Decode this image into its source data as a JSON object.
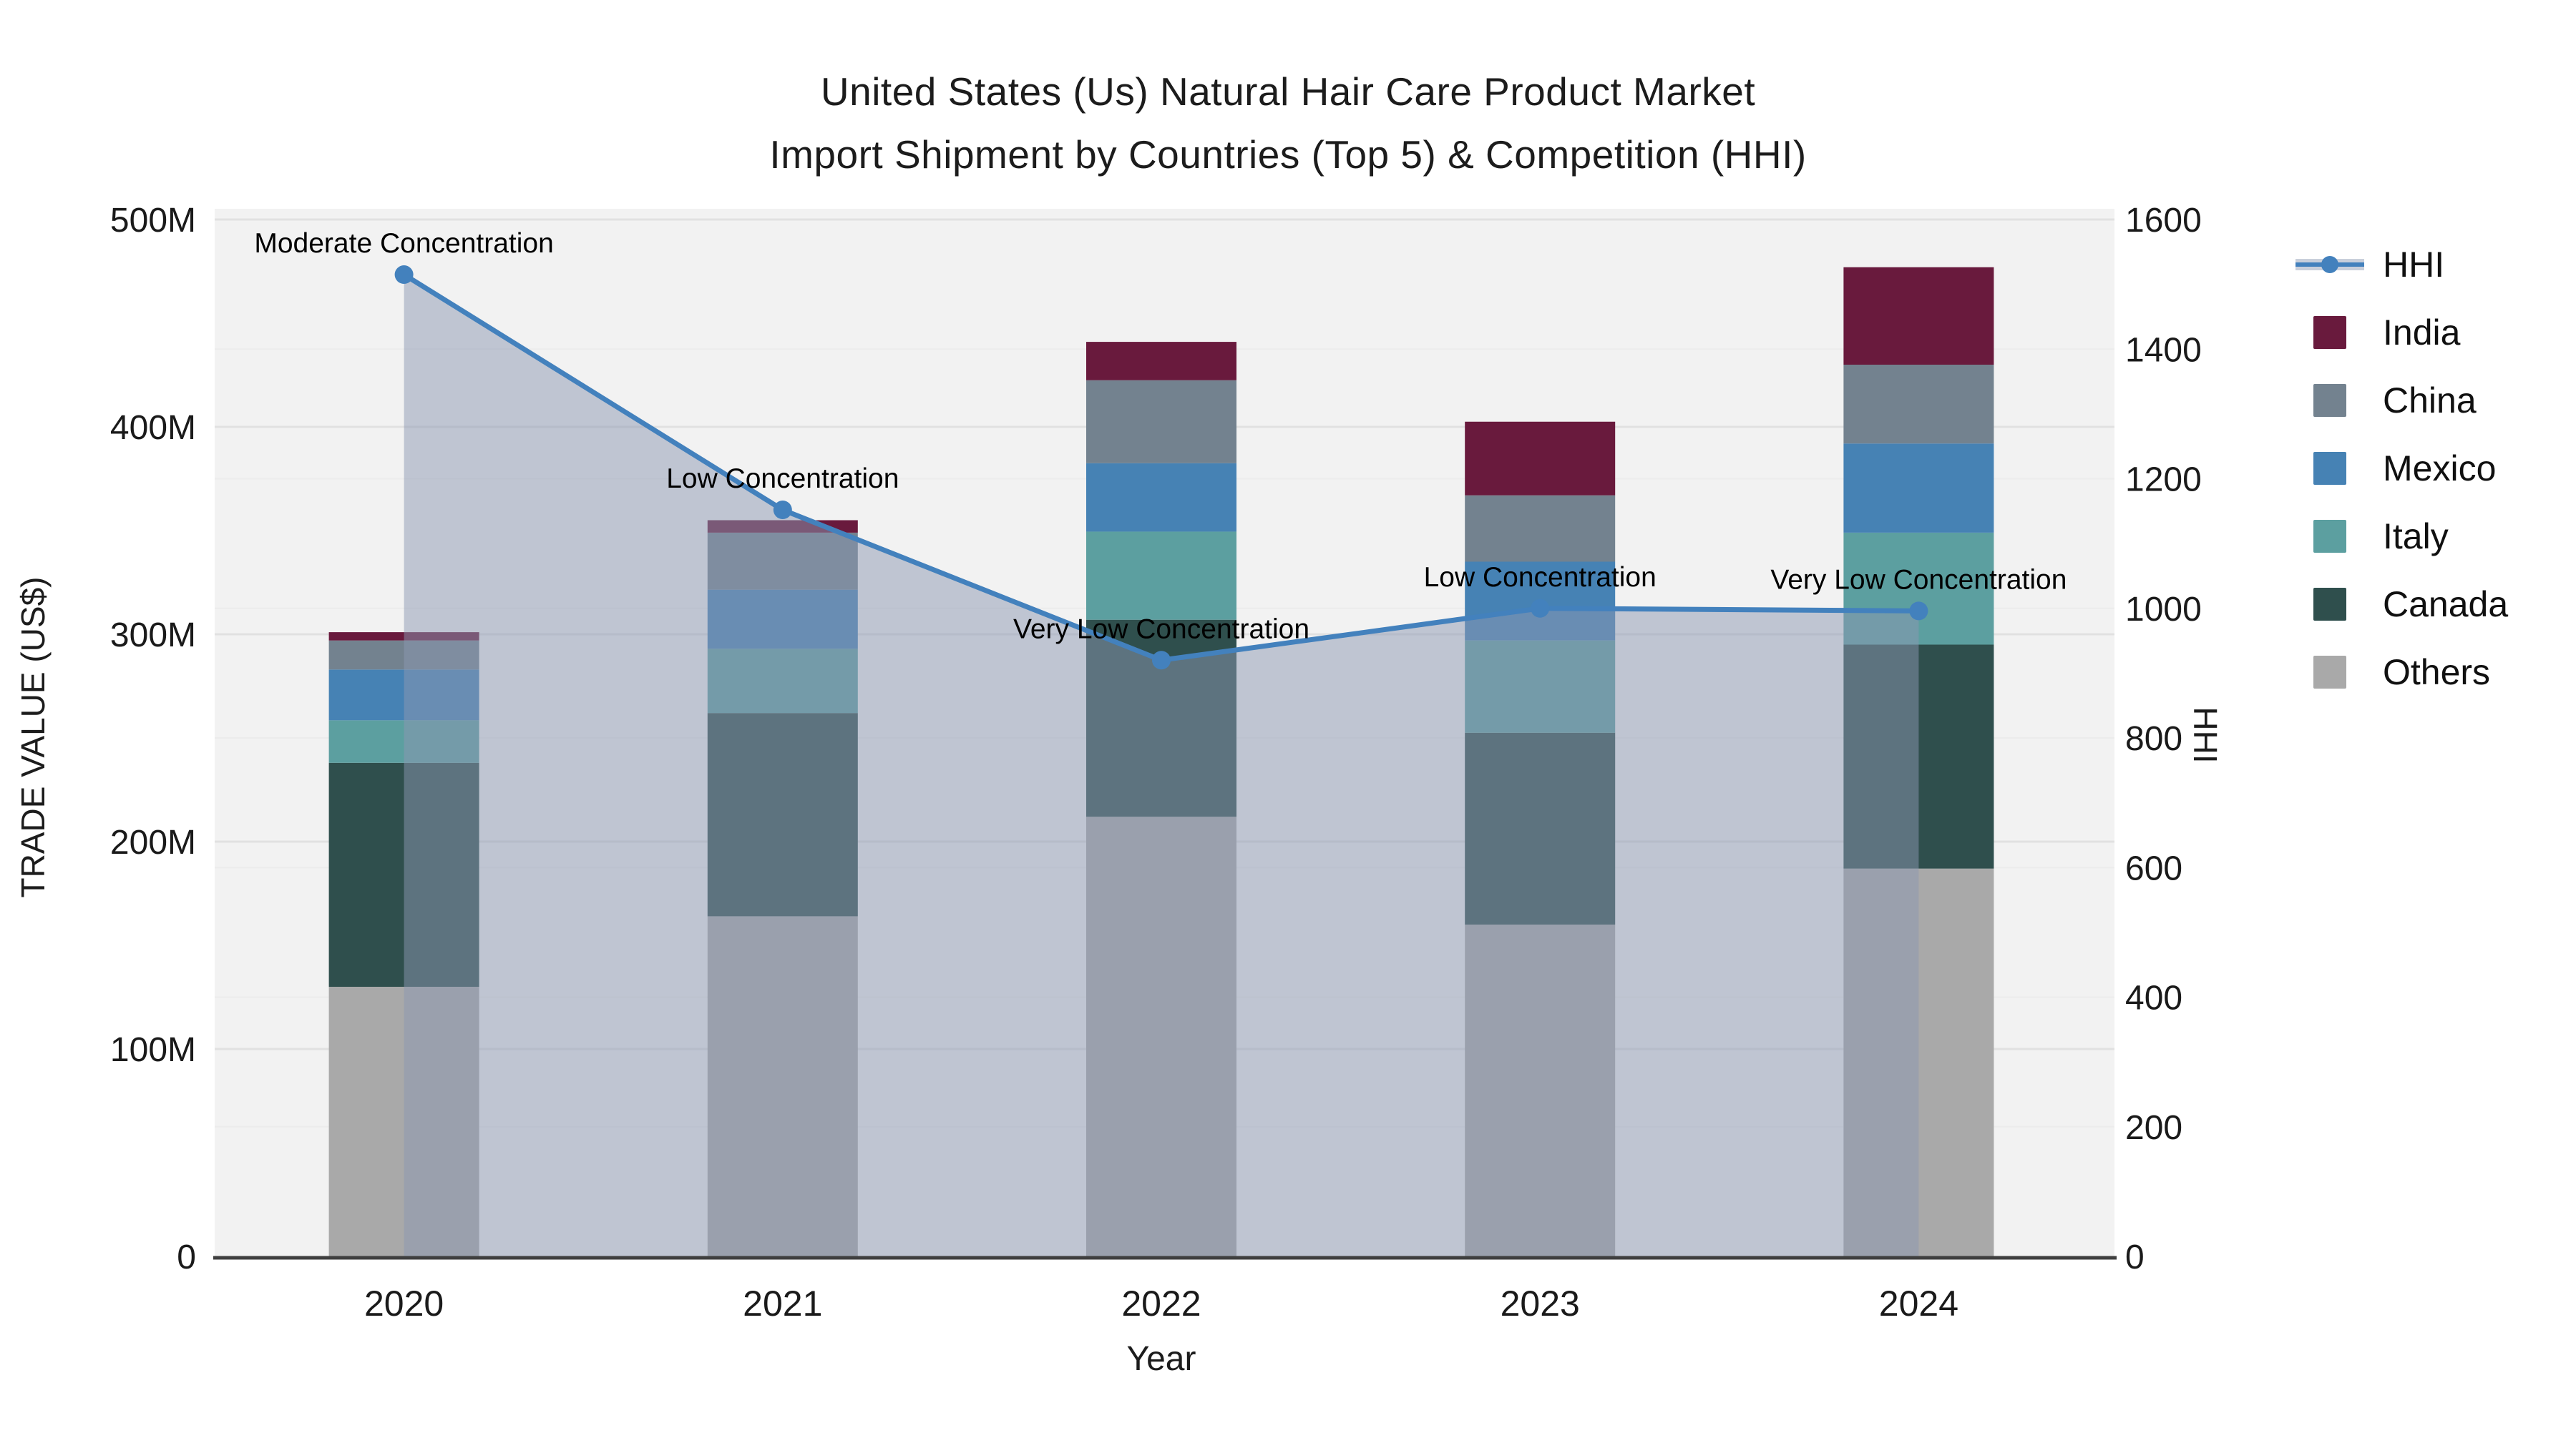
{
  "title": {
    "line1": "United States (Us) Natural Hair Care Product Market",
    "line2": "Import Shipment by Countries (Top 5) & Competition (HHI)"
  },
  "axes": {
    "left": {
      "title": "TRADE VALUE (US$)",
      "tick_values": [
        0,
        100,
        200,
        300,
        400,
        500
      ],
      "tick_labels": [
        "0",
        "100M",
        "200M",
        "300M",
        "400M",
        "500M"
      ]
    },
    "right": {
      "title": "HHI",
      "tick_values": [
        0,
        200,
        400,
        600,
        800,
        1000,
        1200,
        1400,
        1600
      ],
      "tick_labels": [
        "0",
        "200",
        "400",
        "600",
        "800",
        "1000",
        "1200",
        "1400",
        "1600"
      ]
    },
    "x": {
      "title": "Year",
      "categories": [
        "2020",
        "2021",
        "2022",
        "2023",
        "2024"
      ]
    }
  },
  "legend": {
    "items": [
      {
        "label": "HHI",
        "type": "line",
        "color": "#4381BD"
      },
      {
        "label": "India",
        "type": "square",
        "color": "#691A3D"
      },
      {
        "label": "China",
        "type": "square",
        "color": "#73828F"
      },
      {
        "label": "Mexico",
        "type": "square",
        "color": "#4682B4"
      },
      {
        "label": "Italy",
        "type": "square",
        "color": "#5C9FA0"
      },
      {
        "label": "Canada",
        "type": "square",
        "color": "#2F4F4D"
      },
      {
        "label": "Others",
        "type": "square",
        "color": "#A9A9A9"
      }
    ]
  },
  "chart_data": {
    "type": "combo-stacked-bar-line",
    "categories": [
      "2020",
      "2021",
      "2022",
      "2023",
      "2024"
    ],
    "bar_unit": "millions US$",
    "bar_series": [
      {
        "name": "India",
        "color": "#691A3D",
        "values": [
          4,
          6,
          18.5,
          35.5,
          47
        ]
      },
      {
        "name": "China",
        "color": "#73828F",
        "values": [
          14,
          27.5,
          40,
          32,
          38
        ]
      },
      {
        "name": "Mexico",
        "color": "#4682B4",
        "values": [
          24.5,
          28.5,
          33,
          38,
          43
        ]
      },
      {
        "name": "Italy",
        "color": "#5C9FA0",
        "values": [
          20.5,
          31,
          42.5,
          44.5,
          54
        ]
      },
      {
        "name": "Canada",
        "color": "#2F4F4D",
        "values": [
          108,
          98,
          95,
          92.5,
          108
        ]
      },
      {
        "name": "Others",
        "color": "#A9A9A9",
        "values": [
          130,
          164,
          212,
          160,
          187
        ]
      }
    ],
    "stack_order_bottom_to_top": [
      "Others",
      "Canada",
      "Italy",
      "Mexico",
      "China",
      "India"
    ],
    "line_series": {
      "name": "HHI",
      "color": "#4381BD",
      "fill_color": "rgba(140,152,178,0.5)",
      "axis": "right",
      "values": [
        1515,
        1152,
        920,
        1000,
        996
      ]
    },
    "annotations": [
      {
        "x": "2020",
        "text": "Moderate Concentration"
      },
      {
        "x": "2021",
        "text": "Low Concentration"
      },
      {
        "x": "2022",
        "text": "Very Low Concentration"
      },
      {
        "x": "2023",
        "text": "Low Concentration"
      },
      {
        "x": "2024",
        "text": "Very Low Concentration"
      }
    ],
    "xlabel": "Year",
    "ylabel_left": "TRADE VALUE (US$)",
    "ylabel_right": "HHI",
    "left_ylim": [
      0,
      500
    ],
    "right_ylim": [
      0,
      1600
    ],
    "grid": true,
    "legend_position": "right",
    "plot_bg": "#F2F2F2"
  }
}
